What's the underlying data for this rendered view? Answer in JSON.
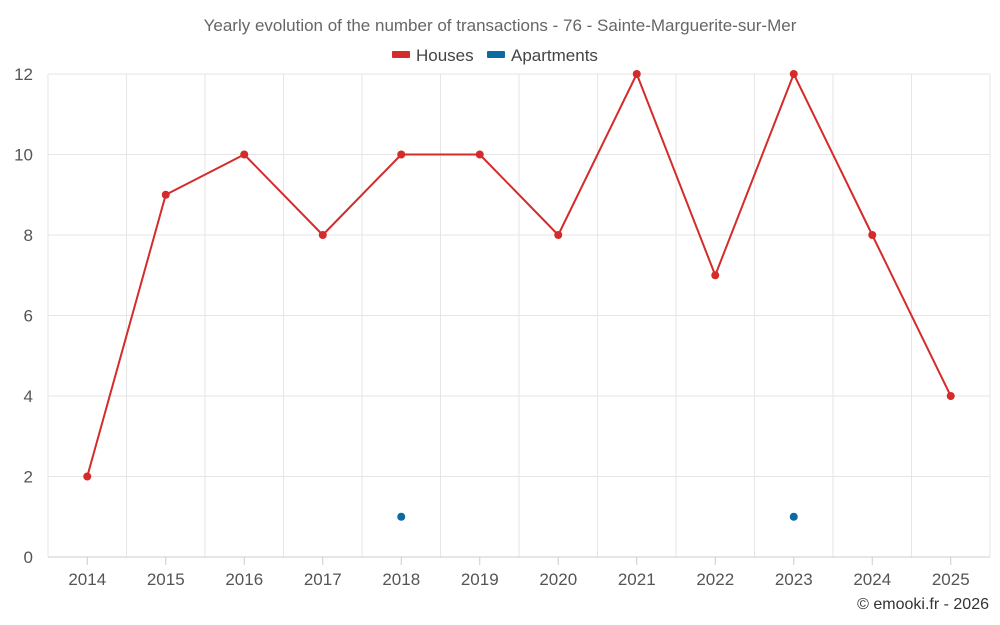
{
  "chart_data": {
    "type": "line",
    "title": "Yearly evolution of the number of transactions - 76 - Sainte-Marguerite-sur-Mer",
    "categories": [
      "2014",
      "2015",
      "2016",
      "2017",
      "2018",
      "2019",
      "2020",
      "2021",
      "2022",
      "2023",
      "2024",
      "2025"
    ],
    "series": [
      {
        "name": "Houses",
        "color": "#d42b2b",
        "values": [
          2,
          9,
          10,
          8,
          10,
          10,
          8,
          12,
          7,
          12,
          8,
          4
        ]
      },
      {
        "name": "Apartments",
        "color": "#0a6aa1",
        "values": [
          null,
          null,
          null,
          null,
          1,
          null,
          null,
          null,
          null,
          1,
          null,
          null
        ]
      }
    ],
    "ylim": [
      0,
      12
    ],
    "yticks": [
      "0",
      "2",
      "4",
      "6",
      "8",
      "10",
      "12"
    ],
    "xlabel": "",
    "ylabel": "",
    "grid": true,
    "legend_position": "top-center"
  },
  "credit": "© emooki.fr - 2026"
}
